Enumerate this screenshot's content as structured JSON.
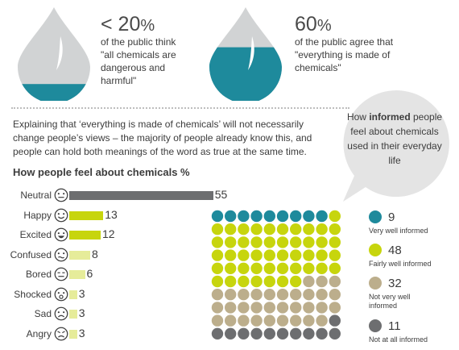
{
  "stats": [
    {
      "value": "< 20",
      "unit": "%",
      "text_lines": [
        "of the public think",
        "\"all chemicals are",
        "dangerous and",
        "harmful\""
      ],
      "fill_fraction": 0.2
    },
    {
      "value": "60",
      "unit": "%",
      "text_lines": [
        "of the public agree that",
        "\"everything is made of",
        "chemicals\""
      ],
      "fill_fraction": 0.6
    }
  ],
  "intro_text": "Explaining that ‘everything is made of chemicals’ will not necessarily change people’s views – the majority of people already know this, and people can hold both meanings of the word as true at the same time.",
  "bubble": {
    "pre": "How",
    "bold": "informed",
    "post": "people feel about chemicals used in their everyday life"
  },
  "colors": {
    "grey_bar": "#6d6e70",
    "lime": "#c7d50d",
    "lime_light": "#e6ec9a",
    "teal": "#1e8a9c",
    "tan": "#bcae8c",
    "dark": "#6d6e70",
    "drop": "#d1d3d4"
  },
  "chart_data": [
    {
      "type": "bar",
      "title": "How people feel about chemicals %",
      "categories": [
        "Neutral",
        "Happy",
        "Excited",
        "Confused",
        "Bored",
        "Shocked",
        "Sad",
        "Angry"
      ],
      "values": [
        55,
        13,
        12,
        8,
        6,
        3,
        3,
        3
      ],
      "icons": [
        "neutral-face-icon",
        "happy-face-icon",
        "excited-face-icon",
        "confused-face-icon",
        "bored-face-icon",
        "shocked-face-icon",
        "sad-face-icon",
        "angry-face-icon"
      ]
    },
    {
      "type": "waffle",
      "grid": {
        "cols": 10,
        "rows": 10
      },
      "categories": [
        "Very well informed",
        "Fairly well informed",
        "Not very well informed",
        "Not at all informed"
      ],
      "values": [
        9,
        48,
        32,
        11
      ],
      "colors": [
        "#1e8a9c",
        "#c7d50d",
        "#bcae8c",
        "#6d6e70"
      ]
    }
  ]
}
